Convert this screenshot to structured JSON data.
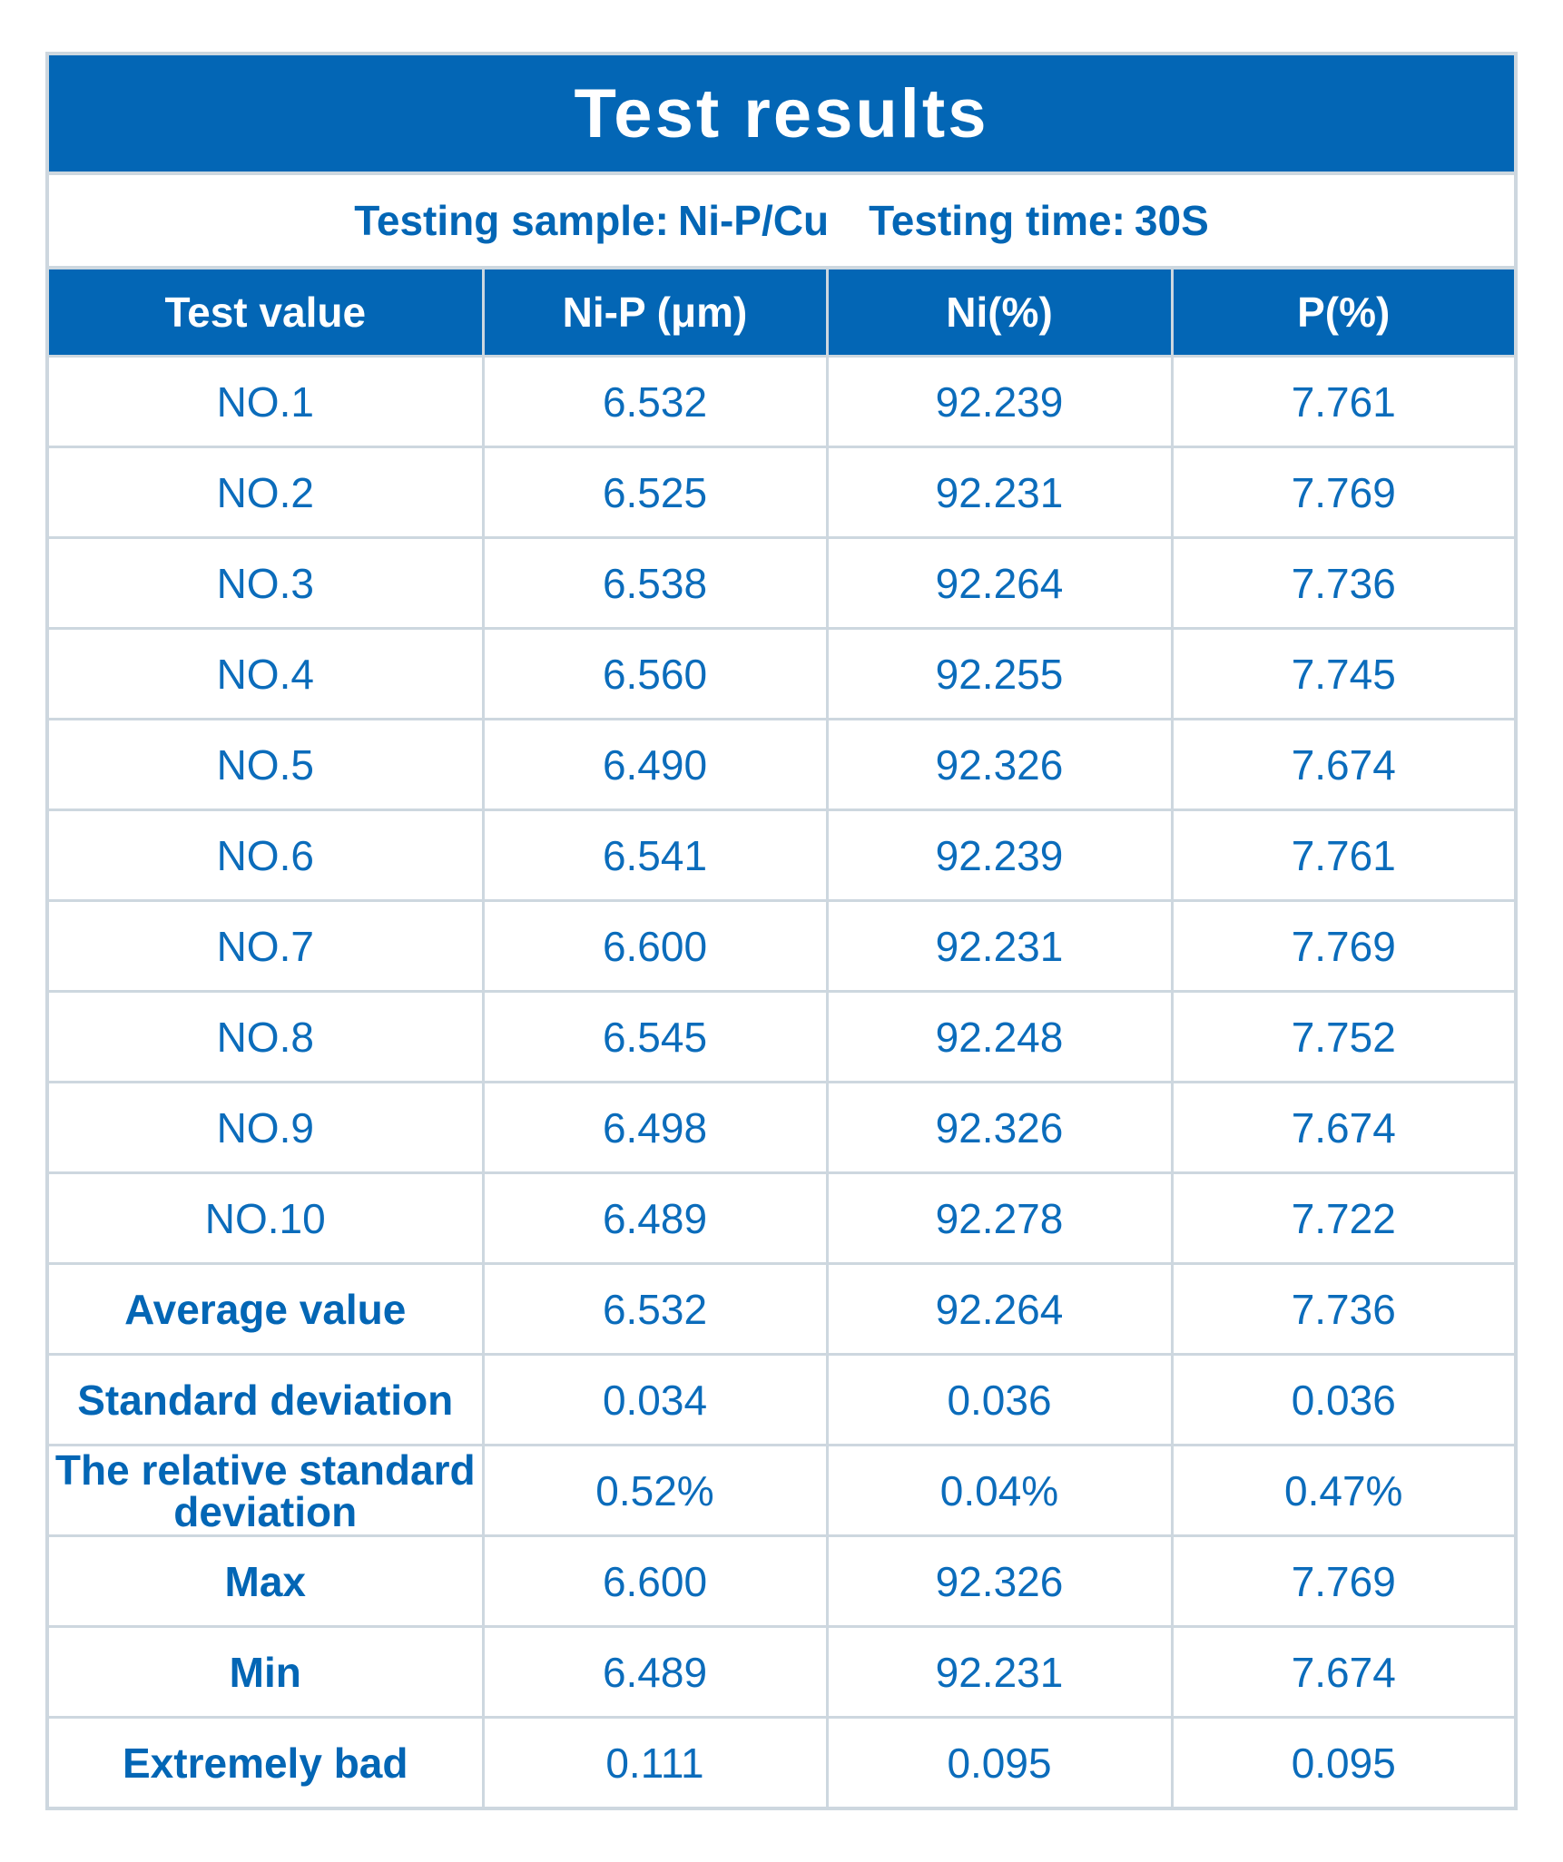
{
  "title": "Test results",
  "subtitle": {
    "sample_label": "Testing sample:",
    "sample_value": "Ni-P/Cu",
    "time_label": "Testing time:",
    "time_value": "30S"
  },
  "table": {
    "headers": [
      "Test value",
      "Ni-P (μm)",
      "Ni(%)",
      "P(%)"
    ],
    "rows": [
      {
        "label": "NO.1",
        "nip": "6.532",
        "ni": "92.239",
        "p": "7.761"
      },
      {
        "label": "NO.2",
        "nip": "6.525",
        "ni": "92.231",
        "p": "7.769"
      },
      {
        "label": "NO.3",
        "nip": "6.538",
        "ni": "92.264",
        "p": "7.736"
      },
      {
        "label": "NO.4",
        "nip": "6.560",
        "ni": "92.255",
        "p": "7.745"
      },
      {
        "label": "NO.5",
        "nip": "6.490",
        "ni": "92.326",
        "p": "7.674"
      },
      {
        "label": "NO.6",
        "nip": "6.541",
        "ni": "92.239",
        "p": "7.761"
      },
      {
        "label": "NO.7",
        "nip": "6.600",
        "ni": "92.231",
        "p": "7.769"
      },
      {
        "label": "NO.8",
        "nip": "6.545",
        "ni": "92.248",
        "p": "7.752"
      },
      {
        "label": "NO.9",
        "nip": "6.498",
        "ni": "92.326",
        "p": "7.674"
      },
      {
        "label": "NO.10",
        "nip": "6.489",
        "ni": "92.278",
        "p": "7.722"
      }
    ],
    "stats": [
      {
        "label": "Average value",
        "nip": "6.532",
        "ni": "92.264",
        "p": "7.736"
      },
      {
        "label": "Standard deviation",
        "nip": "0.034",
        "ni": "0.036",
        "p": "0.036"
      },
      {
        "label": "The relative standard deviation",
        "nip": "0.52%",
        "ni": "0.04%",
        "p": "0.47%"
      },
      {
        "label": "Max",
        "nip": "6.600",
        "ni": "92.326",
        "p": "7.769"
      },
      {
        "label": "Min",
        "nip": "6.489",
        "ni": "92.231",
        "p": "7.674"
      },
      {
        "label": "Extremely bad",
        "nip": "0.111",
        "ni": "0.095",
        "p": "0.095"
      }
    ]
  },
  "colors": {
    "header_blue": "#0366b5",
    "text_blue": "#0b6cbb",
    "border_gray": "#cdd7df"
  }
}
